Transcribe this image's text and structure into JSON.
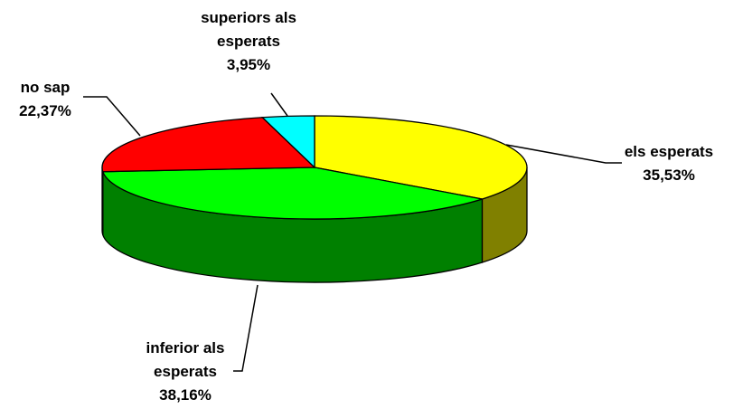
{
  "chart_data": {
    "type": "pie3d",
    "categories": [
      "els esperats",
      "inferior als esperats",
      "no sap",
      "superiors als esperats"
    ],
    "values": [
      35.53,
      38.16,
      22.37,
      3.95
    ],
    "value_labels": [
      "35,53%",
      "38,16%",
      "22,37%",
      "3,95%"
    ],
    "colors": [
      "#ffff00",
      "#00ff00",
      "#ff0000",
      "#00ffff"
    ]
  }
}
